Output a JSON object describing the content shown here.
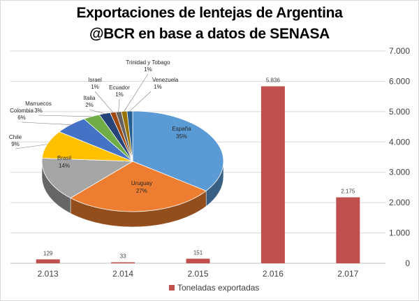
{
  "chart_data": [
    {
      "type": "bar",
      "title": "Exportaciones de lentejas de Argentina",
      "subtitle": "@BCR en base a datos de SENASA",
      "categories": [
        "2.013",
        "2.014",
        "2.015",
        "2.016",
        "2.017"
      ],
      "series": [
        {
          "name": "Toneladas exportadas",
          "values": [
            129,
            33,
            151,
            5836,
            2175
          ],
          "labels": [
            "129",
            "33",
            "151",
            "5.836",
            "2.175"
          ],
          "color": "#c0504d"
        }
      ],
      "ylim": [
        0,
        7000
      ],
      "yticks": [
        0,
        1000,
        2000,
        3000,
        4000,
        5000,
        6000,
        7000
      ],
      "ytick_labels": [
        "0",
        "1.000",
        "2.000",
        "3.000",
        "4.000",
        "5.000",
        "6.000",
        "7.000"
      ],
      "yaxis_side": "right",
      "grid": true,
      "legend": "bottom"
    },
    {
      "type": "pie",
      "style": "3d",
      "slices": [
        {
          "label": "España",
          "percent": 35,
          "text": "35%",
          "color": "#5b9bd5"
        },
        {
          "label": "Uruguay",
          "percent": 27,
          "text": "27%",
          "color": "#ed7d31"
        },
        {
          "label": "Brasil",
          "percent": 14,
          "text": "14%",
          "color": "#a5a5a5"
        },
        {
          "label": "Chile",
          "percent": 9,
          "text": "9%",
          "color": "#ffc000"
        },
        {
          "label": "Colombia",
          "percent": 6,
          "text": "6%",
          "color": "#4472c4"
        },
        {
          "label": "Marruecos",
          "percent": 3,
          "text": "3%",
          "color": "#70ad47"
        },
        {
          "label": "Italia",
          "percent": 2,
          "text": "2%",
          "color": "#264478"
        },
        {
          "label": "Israel",
          "percent": 1,
          "text": "1%",
          "color": "#9e480e"
        },
        {
          "label": "Ecuador",
          "percent": 1,
          "text": "1%",
          "color": "#636363"
        },
        {
          "label": "Trinidad y Tobago",
          "percent": 1,
          "text": "1%",
          "color": "#997300"
        },
        {
          "label": "Venezuela",
          "percent": 1,
          "text": "1%",
          "color": "#255e91"
        }
      ]
    }
  ]
}
